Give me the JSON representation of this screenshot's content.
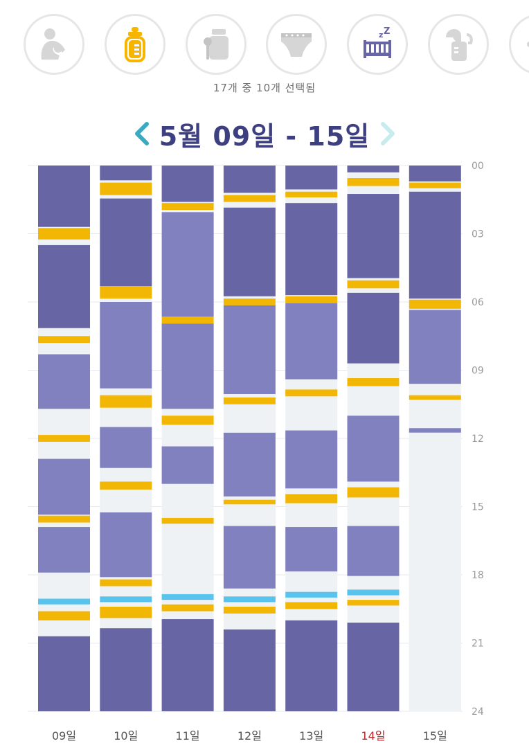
{
  "filters": [
    {
      "icon": "nursing-icon",
      "active": false
    },
    {
      "icon": "bottle-icon",
      "active": true
    },
    {
      "icon": "baby-food-icon",
      "active": false
    },
    {
      "icon": "diaper-icon",
      "active": false
    },
    {
      "icon": "crib-sleep-icon",
      "active": true
    },
    {
      "icon": "breast-pump-icon",
      "active": false
    },
    {
      "icon": "more-icon",
      "active": false
    }
  ],
  "selection_count": "17개 중 10개 선택됨",
  "range_title": "5월 09일 - 15일",
  "colors": {
    "night_sleep": "#6765a4",
    "day_sleep": "#8281c0",
    "feeding": "#f2b705",
    "other": "#58c4ee",
    "awake": "#eef2f5",
    "accent": "#f7b500",
    "title": "#3d3f80",
    "today": "#c0262c",
    "nav_prev": "#3aaac2",
    "nav_next": "#c8ebf0",
    "inactive_icon": "#d6d6d6"
  },
  "chart_data": {
    "type": "bar",
    "orientation": "vertical-timeline",
    "y_range_hours": [
      0,
      24
    ],
    "y_ticks": [
      "00",
      "03",
      "06",
      "09",
      "12",
      "15",
      "18",
      "21",
      "24"
    ],
    "today_index": 5,
    "days": [
      {
        "label": "09일",
        "segments": [
          {
            "kind": "night_sleep",
            "start": 0.0,
            "end": 2.7
          },
          {
            "kind": "feeding",
            "start": 2.75,
            "end": 3.25
          },
          {
            "kind": "night_sleep",
            "start": 3.5,
            "end": 7.15
          },
          {
            "kind": "feeding",
            "start": 7.5,
            "end": 7.8
          },
          {
            "kind": "day_sleep",
            "start": 8.3,
            "end": 10.7
          },
          {
            "kind": "feeding",
            "start": 11.85,
            "end": 12.15
          },
          {
            "kind": "day_sleep",
            "start": 12.9,
            "end": 15.35
          },
          {
            "kind": "feeding",
            "start": 15.4,
            "end": 15.7
          },
          {
            "kind": "day_sleep",
            "start": 15.9,
            "end": 17.9
          },
          {
            "kind": "other",
            "start": 19.05,
            "end": 19.3
          },
          {
            "kind": "feeding",
            "start": 19.6,
            "end": 20.0
          },
          {
            "kind": "night_sleep",
            "start": 20.7,
            "end": 24.0
          }
        ]
      },
      {
        "label": "10일",
        "segments": [
          {
            "kind": "night_sleep",
            "start": 0.0,
            "end": 0.65
          },
          {
            "kind": "feeding",
            "start": 0.75,
            "end": 1.3
          },
          {
            "kind": "night_sleep",
            "start": 1.45,
            "end": 5.3
          },
          {
            "kind": "feeding",
            "start": 5.3,
            "end": 5.85
          },
          {
            "kind": "day_sleep",
            "start": 6.0,
            "end": 9.8
          },
          {
            "kind": "feeding",
            "start": 10.1,
            "end": 10.65
          },
          {
            "kind": "day_sleep",
            "start": 11.5,
            "end": 13.3
          },
          {
            "kind": "feeding",
            "start": 13.9,
            "end": 14.25
          },
          {
            "kind": "day_sleep",
            "start": 15.25,
            "end": 18.1
          },
          {
            "kind": "feeding",
            "start": 18.2,
            "end": 18.5
          },
          {
            "kind": "other",
            "start": 18.95,
            "end": 19.2
          },
          {
            "kind": "feeding",
            "start": 19.4,
            "end": 19.9
          },
          {
            "kind": "night_sleep",
            "start": 20.35,
            "end": 24.0
          }
        ]
      },
      {
        "label": "11일",
        "segments": [
          {
            "kind": "night_sleep",
            "start": 0.0,
            "end": 1.6
          },
          {
            "kind": "feeding",
            "start": 1.65,
            "end": 1.95
          },
          {
            "kind": "day_sleep",
            "start": 2.05,
            "end": 6.65
          },
          {
            "kind": "feeding",
            "start": 6.65,
            "end": 6.95
          },
          {
            "kind": "day_sleep",
            "start": 6.95,
            "end": 10.7
          },
          {
            "kind": "feeding",
            "start": 11.0,
            "end": 11.4
          },
          {
            "kind": "day_sleep",
            "start": 12.35,
            "end": 14.0
          },
          {
            "kind": "feeding",
            "start": 15.5,
            "end": 15.75
          },
          {
            "kind": "other",
            "start": 18.85,
            "end": 19.1
          },
          {
            "kind": "feeding",
            "start": 19.3,
            "end": 19.6
          },
          {
            "kind": "night_sleep",
            "start": 19.95,
            "end": 24.0
          }
        ]
      },
      {
        "label": "12일",
        "segments": [
          {
            "kind": "night_sleep",
            "start": 0.0,
            "end": 1.2
          },
          {
            "kind": "feeding",
            "start": 1.3,
            "end": 1.6
          },
          {
            "kind": "night_sleep",
            "start": 1.85,
            "end": 5.75
          },
          {
            "kind": "feeding",
            "start": 5.85,
            "end": 6.15
          },
          {
            "kind": "day_sleep",
            "start": 6.15,
            "end": 10.05
          },
          {
            "kind": "feeding",
            "start": 10.2,
            "end": 10.5
          },
          {
            "kind": "day_sleep",
            "start": 11.75,
            "end": 14.55
          },
          {
            "kind": "feeding",
            "start": 14.7,
            "end": 14.9
          },
          {
            "kind": "day_sleep",
            "start": 15.85,
            "end": 18.6
          },
          {
            "kind": "other",
            "start": 18.95,
            "end": 19.2
          },
          {
            "kind": "feeding",
            "start": 19.4,
            "end": 19.7
          },
          {
            "kind": "night_sleep",
            "start": 20.4,
            "end": 24.0
          }
        ]
      },
      {
        "label": "13일",
        "segments": [
          {
            "kind": "night_sleep",
            "start": 0.0,
            "end": 1.05
          },
          {
            "kind": "feeding",
            "start": 1.15,
            "end": 1.4
          },
          {
            "kind": "night_sleep",
            "start": 1.65,
            "end": 5.7
          },
          {
            "kind": "feeding",
            "start": 5.75,
            "end": 6.05
          },
          {
            "kind": "day_sleep",
            "start": 6.05,
            "end": 9.4
          },
          {
            "kind": "feeding",
            "start": 9.85,
            "end": 10.15
          },
          {
            "kind": "day_sleep",
            "start": 11.65,
            "end": 14.2
          },
          {
            "kind": "feeding",
            "start": 14.45,
            "end": 14.85
          },
          {
            "kind": "day_sleep",
            "start": 15.9,
            "end": 17.85
          },
          {
            "kind": "other",
            "start": 18.75,
            "end": 19.0
          },
          {
            "kind": "feeding",
            "start": 19.2,
            "end": 19.5
          },
          {
            "kind": "night_sleep",
            "start": 20.0,
            "end": 24.0
          }
        ]
      },
      {
        "label": "14일",
        "segments": [
          {
            "kind": "night_sleep",
            "start": 0.0,
            "end": 0.3
          },
          {
            "kind": "feeding",
            "start": 0.55,
            "end": 0.9
          },
          {
            "kind": "night_sleep",
            "start": 1.25,
            "end": 4.95
          },
          {
            "kind": "feeding",
            "start": 5.05,
            "end": 5.4
          },
          {
            "kind": "night_sleep",
            "start": 5.6,
            "end": 8.7
          },
          {
            "kind": "feeding",
            "start": 9.35,
            "end": 9.7
          },
          {
            "kind": "day_sleep",
            "start": 11.0,
            "end": 13.9
          },
          {
            "kind": "feeding",
            "start": 14.15,
            "end": 14.6
          },
          {
            "kind": "day_sleep",
            "start": 15.85,
            "end": 18.05
          },
          {
            "kind": "other",
            "start": 18.65,
            "end": 18.9
          },
          {
            "kind": "feeding",
            "start": 19.1,
            "end": 19.35
          },
          {
            "kind": "night_sleep",
            "start": 20.1,
            "end": 24.0
          }
        ]
      },
      {
        "label": "15일",
        "segments": [
          {
            "kind": "night_sleep",
            "start": 0.0,
            "end": 0.7
          },
          {
            "kind": "feeding",
            "start": 0.75,
            "end": 1.0
          },
          {
            "kind": "night_sleep",
            "start": 1.15,
            "end": 5.85
          },
          {
            "kind": "feeding",
            "start": 5.9,
            "end": 6.3
          },
          {
            "kind": "day_sleep",
            "start": 6.35,
            "end": 9.6
          },
          {
            "kind": "feeding",
            "start": 10.1,
            "end": 10.3
          },
          {
            "kind": "day_sleep",
            "start": 11.55,
            "end": 11.75
          },
          {
            "kind": "awake",
            "start": 11.75,
            "end": 24.0
          }
        ]
      }
    ]
  }
}
